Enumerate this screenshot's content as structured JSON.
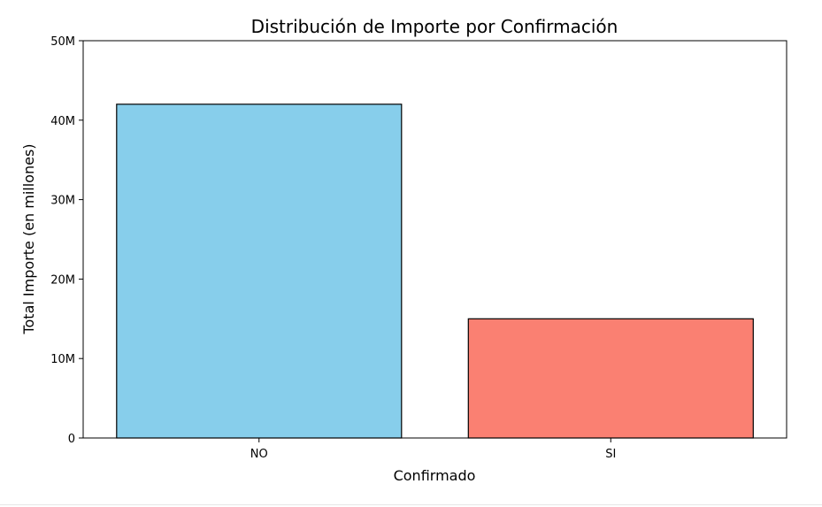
{
  "chart_data": {
    "type": "bar",
    "title": "Distribución de Importe por Confirmación",
    "xlabel": "Confirmado",
    "ylabel": "Total Importe (en millones)",
    "categories": [
      "NO",
      "SI"
    ],
    "values": [
      42000000,
      15000000
    ],
    "colors": [
      "#87ceeb",
      "#fa8072"
    ],
    "edge_color": "#000000",
    "ylim": [
      0,
      50000000
    ],
    "yticks": [
      0,
      10000000,
      20000000,
      30000000,
      40000000,
      50000000
    ],
    "ytick_labels": [
      "0",
      "10M",
      "20M",
      "30M",
      "40M",
      "50M"
    ],
    "grid": false,
    "legend": false
  }
}
